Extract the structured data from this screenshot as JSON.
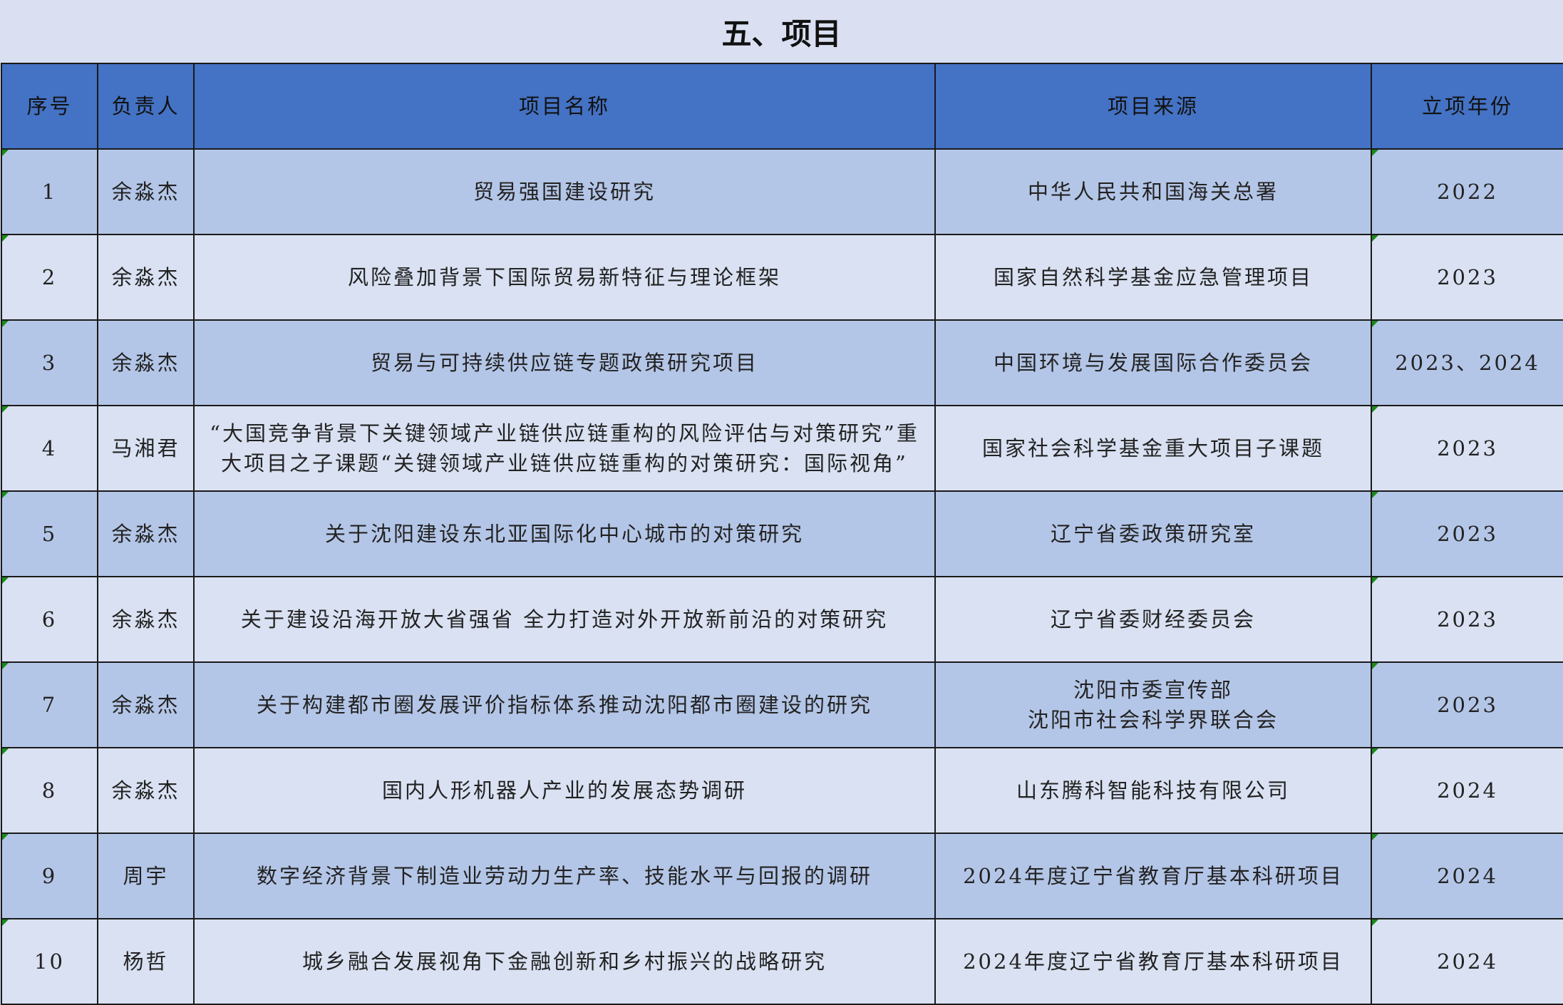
{
  "title": "五、项目",
  "colors": {
    "header_bg": "#4472c4",
    "row_odd": "#b4c6e7",
    "row_even": "#d9e1f2",
    "title_bg": "#dae0f2"
  },
  "columns": [
    "序号",
    "负责人",
    "项目名称",
    "项目来源",
    "立项年份"
  ],
  "rows": [
    {
      "no": "1",
      "lead": "余淼杰",
      "name": "贸易强国建设研究",
      "source": "中华人民共和国海关总署",
      "year": "2022"
    },
    {
      "no": "2",
      "lead": "余淼杰",
      "name": "风险叠加背景下国际贸易新特征与理论框架",
      "source": "国家自然科学基金应急管理项目",
      "year": "2023"
    },
    {
      "no": "3",
      "lead": "余淼杰",
      "name": "贸易与可持续供应链专题政策研究项目",
      "source": "中国环境与发展国际合作委员会",
      "year": "2023、2024"
    },
    {
      "no": "4",
      "lead": "马湘君",
      "name": "“大国竞争背景下关键领域产业链供应链重构的风险评估与对策研究”重大项目之子课题“关键领域产业链供应链重构的对策研究：国际视角”",
      "source": "国家社会科学基金重大项目子课题",
      "year": "2023"
    },
    {
      "no": "5",
      "lead": "余淼杰",
      "name": "关于沈阳建设东北亚国际化中心城市的对策研究",
      "source": "辽宁省委政策研究室",
      "year": "2023"
    },
    {
      "no": "6",
      "lead": "余淼杰",
      "name": "关于建设沿海开放大省强省  全力打造对外开放新前沿的对策研究",
      "source": "辽宁省委财经委员会",
      "year": "2023"
    },
    {
      "no": "7",
      "lead": "余淼杰",
      "name": "关于构建都市圈发展评价指标体系推动沈阳都市圈建设的研究",
      "source": "沈阳市委宣传部\n沈阳市社会科学界联合会",
      "year": "2023"
    },
    {
      "no": "8",
      "lead": "余淼杰",
      "name": "国内人形机器人产业的发展态势调研",
      "source": "山东腾科智能科技有限公司",
      "year": "2024"
    },
    {
      "no": "9",
      "lead": "周宇",
      "name": "数字经济背景下制造业劳动力生产率、技能水平与回报的调研",
      "source": "2024年度辽宁省教育厅基本科研项目",
      "year": "2024"
    },
    {
      "no": "10",
      "lead": "杨哲",
      "name": "城乡融合发展视角下金融创新和乡村振兴的战略研究",
      "source": "2024年度辽宁省教育厅基本科研项目",
      "year": "2024"
    }
  ]
}
